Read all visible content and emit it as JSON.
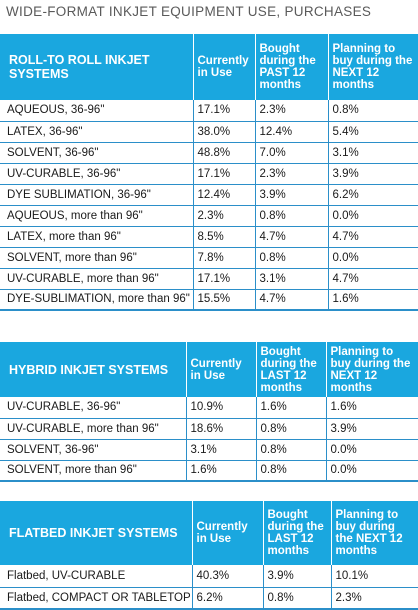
{
  "title": "WIDE-FORMAT INKJET EQUIPMENT USE, PURCHASES",
  "tables": [
    {
      "headers": [
        "ROLL-TO ROLL INKJET SYSTEMS",
        "Currently in Use",
        "Bought during the PAST 12 months",
        "Planning to buy during the NEXT 12 months"
      ],
      "rows": [
        [
          "AQUEOUS, 36-96\"",
          "17.1%",
          "2.3%",
          "0.8%"
        ],
        [
          "LATEX, 36-96\"",
          "38.0%",
          "12.4%",
          "5.4%"
        ],
        [
          "SOLVENT, 36-96\"",
          "48.8%",
          "7.0%",
          "3.1%"
        ],
        [
          "UV-CURABLE, 36-96\"",
          "17.1%",
          "2.3%",
          "3.9%"
        ],
        [
          "DYE SUBLIMATION, 36-96\"",
          "12.4%",
          "3.9%",
          "6.2%"
        ],
        [
          "AQUEOUS, more than 96\"",
          "2.3%",
          "0.8%",
          "0.0%"
        ],
        [
          "LATEX, more than 96\"",
          "8.5%",
          "4.7%",
          "4.7%"
        ],
        [
          "SOLVENT, more than 96\"",
          "7.8%",
          "0.8%",
          "0.0%"
        ],
        [
          "UV-CURABLE, more than 96\"",
          "17.1%",
          "3.1%",
          "4.7%"
        ],
        [
          "DYE-SUBLIMATION, more than 96\"",
          "15.5%",
          "4.7%",
          "1.6%"
        ]
      ]
    },
    {
      "headers": [
        "HYBRID INKJET SYSTEMS",
        "Currently in Use",
        "Bought during the LAST 12 months",
        "Planning to buy during the NEXT 12 months"
      ],
      "rows": [
        [
          "UV-CURABLE, 36-96\"",
          "10.9%",
          "1.6%",
          "1.6%"
        ],
        [
          "UV-CURABLE, more than 96\"",
          "18.6%",
          "0.8%",
          "3.9%"
        ],
        [
          "SOLVENT, 36-96\"",
          "3.1%",
          "0.8%",
          "0.0%"
        ],
        [
          "SOLVENT, more than 96\"",
          "1.6%",
          "0.8%",
          "0.0%"
        ]
      ]
    },
    {
      "headers": [
        "FLATBED INKJET SYSTEMS",
        "Currently in Use",
        "Bought during the LAST 12 months",
        "Planning to buy during the NEXT 12 months"
      ],
      "rows": [
        [
          "Flatbed, UV-CURABLE",
          "40.3%",
          "3.9%",
          "10.1%"
        ],
        [
          "Flatbed, COMPACT OR TABLETOP",
          "6.2%",
          "0.8%",
          "2.3%"
        ]
      ]
    }
  ]
}
